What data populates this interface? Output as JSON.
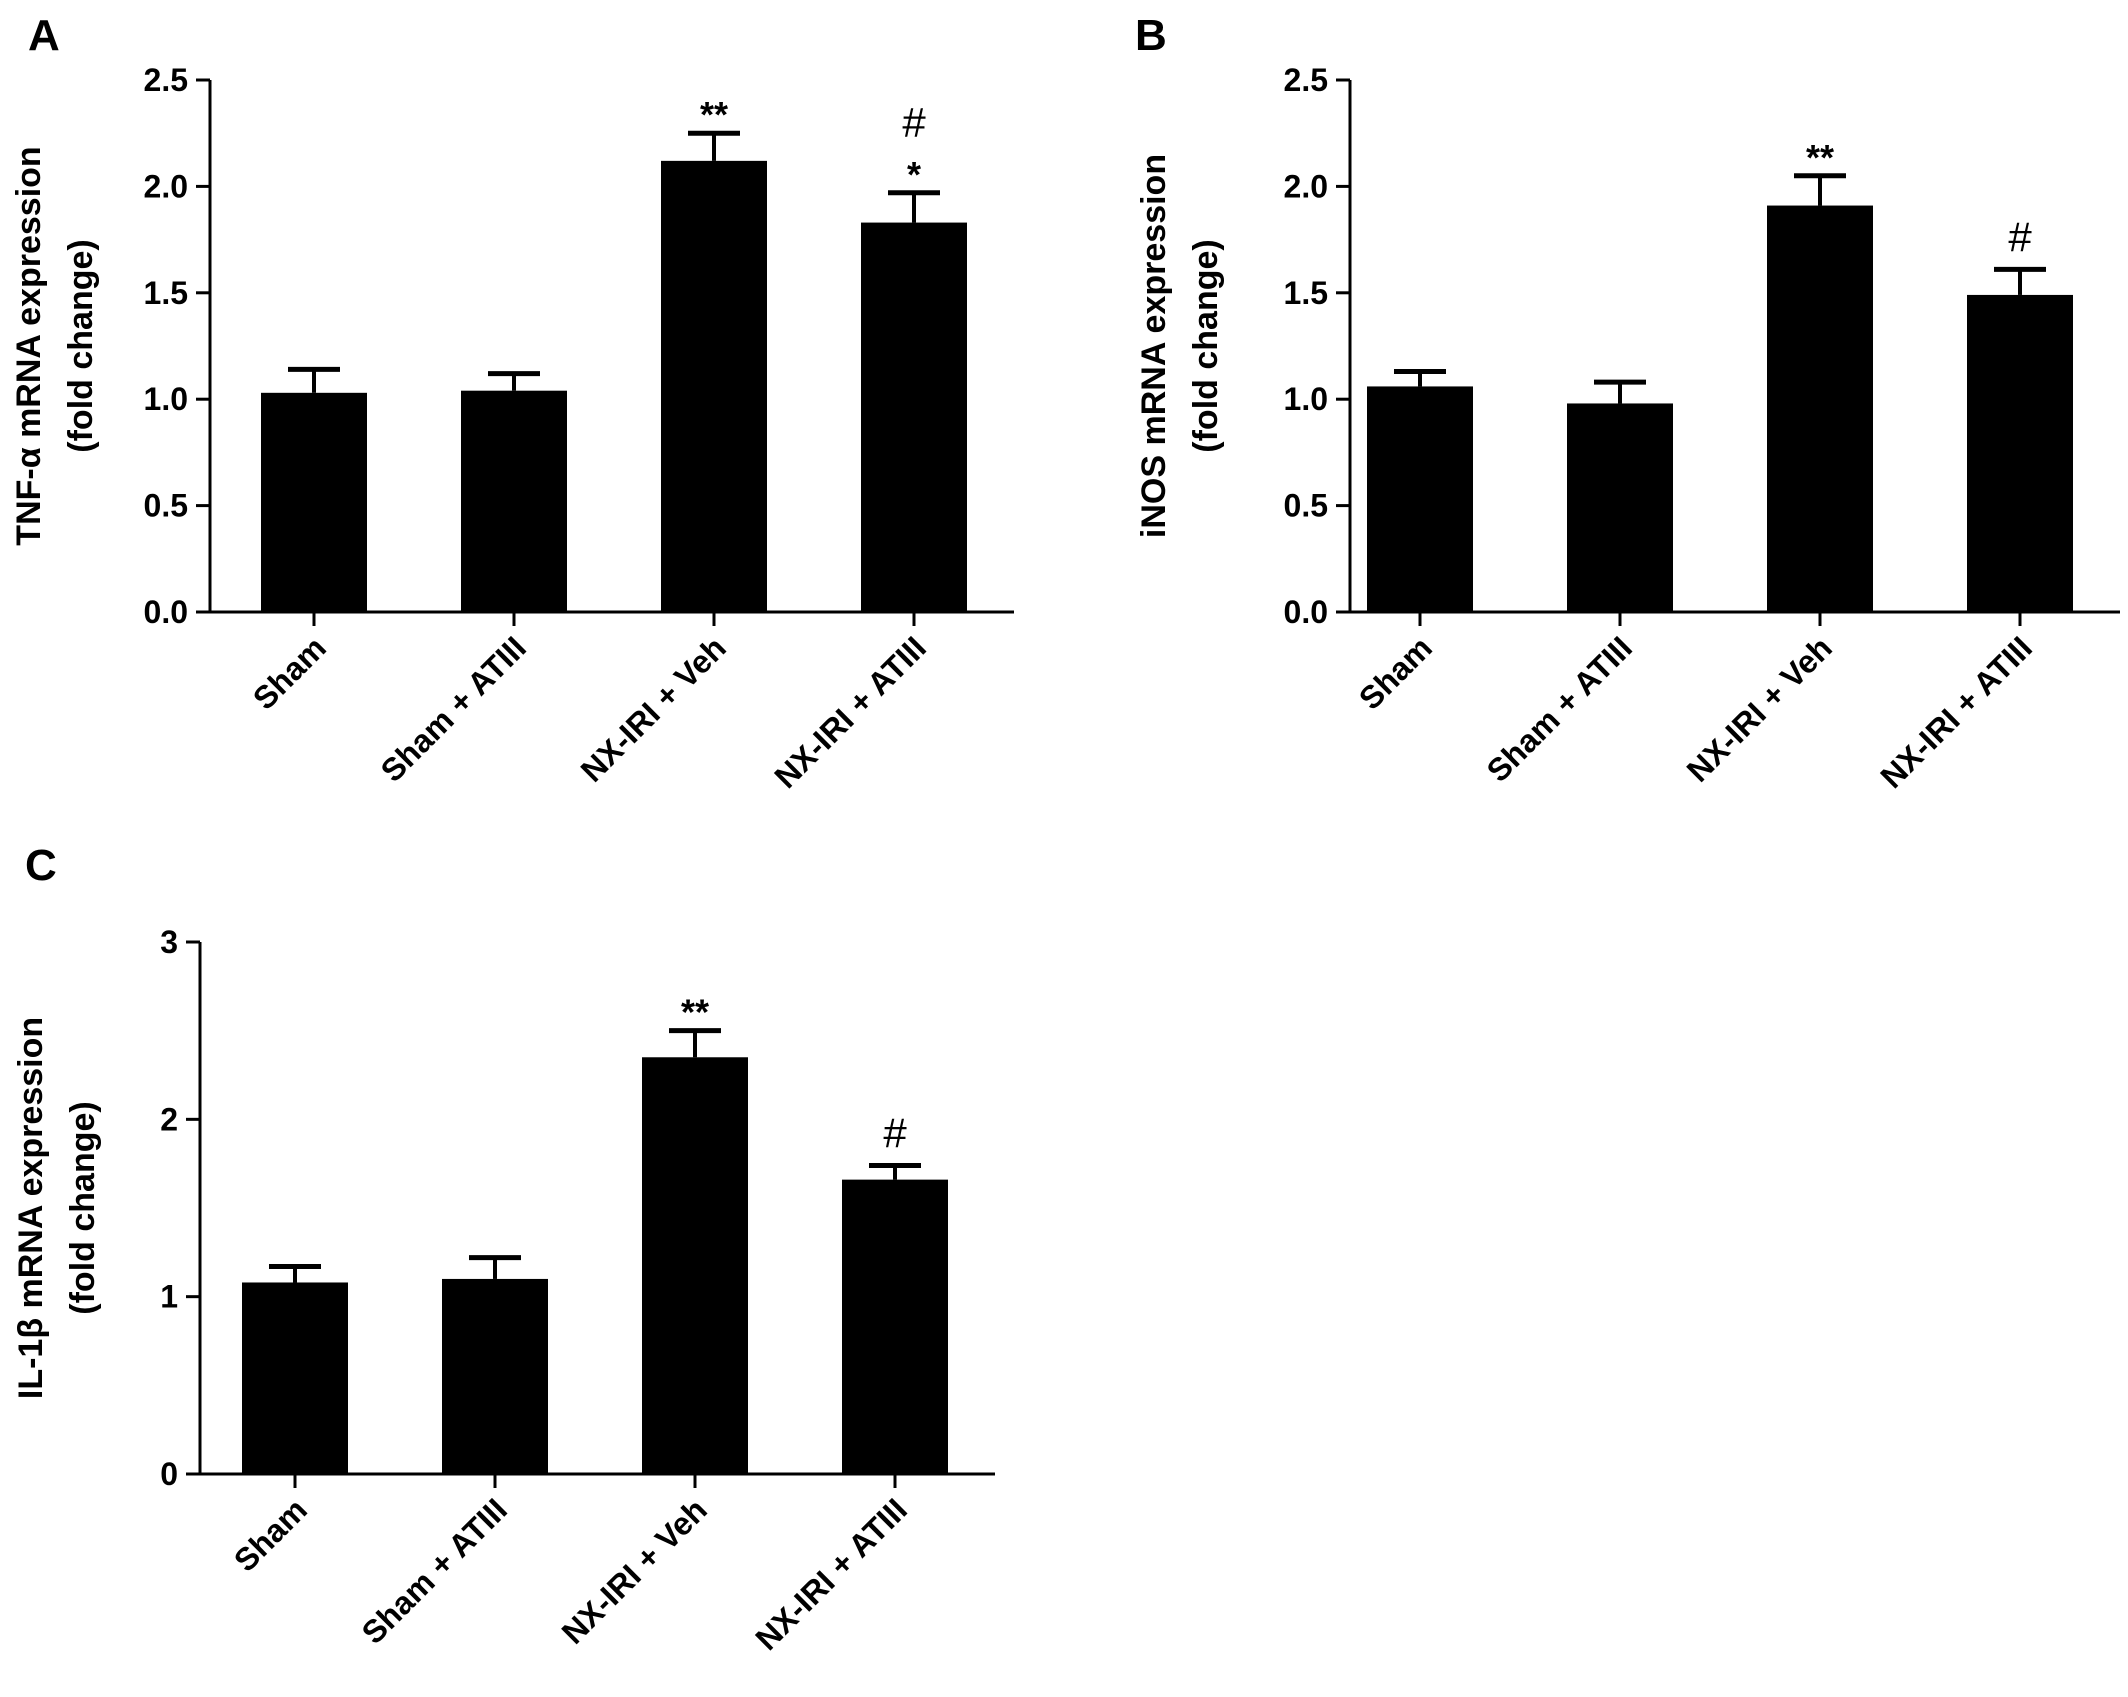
{
  "chart_data": [
    {
      "type": "bar",
      "panel_label": "A",
      "ylabel_lines": [
        "TNF-α  mRNA expression",
        "(fold change)"
      ],
      "categories": [
        "Sham",
        "Sham + ATIII",
        "NX-IRI + Veh",
        "NX-IRI + ATIII"
      ],
      "values": [
        1.03,
        1.04,
        2.12,
        1.83
      ],
      "errors": [
        0.11,
        0.08,
        0.13,
        0.14
      ],
      "annotations": [
        [],
        [],
        [
          "**"
        ],
        [
          "*",
          "#"
        ]
      ],
      "ylim": [
        0,
        2.5
      ],
      "yticks": [
        0,
        0.5,
        1.0,
        1.5,
        2.0,
        2.5
      ],
      "ytick_labels": [
        "0.0",
        "0.5",
        "1.0",
        "1.5",
        "2.0",
        "2.5"
      ],
      "bar_color": "#000000"
    },
    {
      "type": "bar",
      "panel_label": "B",
      "ylabel_lines": [
        "iNOS mRNA expression",
        "(fold change)"
      ],
      "categories": [
        "Sham",
        "Sham + ATIII",
        "NX-IRI + Veh",
        "NX-IRI + ATIII"
      ],
      "values": [
        1.06,
        0.98,
        1.91,
        1.49
      ],
      "errors": [
        0.07,
        0.1,
        0.14,
        0.12
      ],
      "annotations": [
        [],
        [],
        [
          "**"
        ],
        [
          "#"
        ]
      ],
      "ylim": [
        0,
        2.5
      ],
      "yticks": [
        0,
        0.5,
        1.0,
        1.5,
        2.0,
        2.5
      ],
      "ytick_labels": [
        "0.0",
        "0.5",
        "1.0",
        "1.5",
        "2.0",
        "2.5"
      ],
      "bar_color": "#000000"
    },
    {
      "type": "bar",
      "panel_label": "C",
      "ylabel_lines": [
        "IL-1β  mRNA expression",
        "(fold change)"
      ],
      "categories": [
        "Sham",
        "Sham + ATIII",
        "NX-IRI + Veh",
        "NX-IRI + ATIII"
      ],
      "values": [
        1.08,
        1.1,
        2.35,
        1.66
      ],
      "errors": [
        0.09,
        0.12,
        0.15,
        0.08
      ],
      "annotations": [
        [],
        [],
        [
          "**"
        ],
        [
          "#"
        ]
      ],
      "ylim": [
        0,
        3
      ],
      "yticks": [
        0,
        1,
        2,
        3
      ],
      "ytick_labels": [
        "0",
        "1",
        "2",
        "3"
      ],
      "bar_color": "#000000"
    }
  ]
}
